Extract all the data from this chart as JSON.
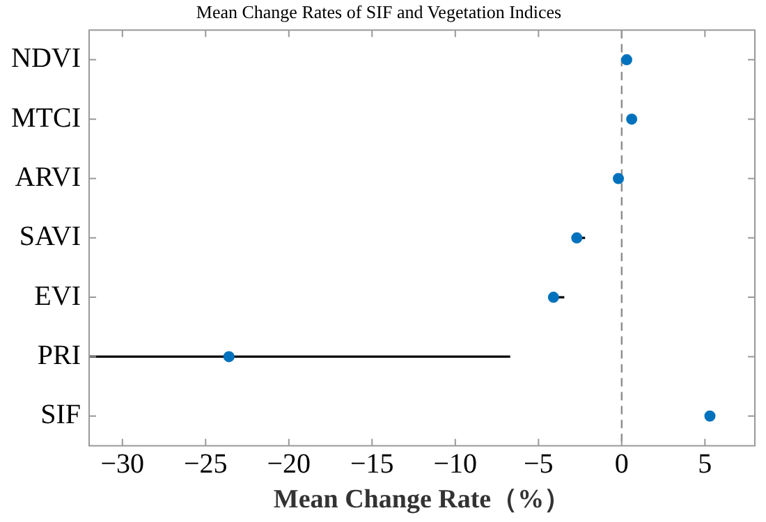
{
  "chart_data": {
    "type": "scatter",
    "title": "Mean Change Rates of SIF and Vegetation Indices",
    "xlabel": "Mean Change Rate（%）",
    "orientation": "horizontal",
    "categories": [
      "NDVI",
      "MTCI",
      "ARVI",
      "SAVI",
      "EVI",
      "PRI",
      "SIF"
    ],
    "values": [
      0.3,
      0.6,
      -0.2,
      -2.7,
      -4.1,
      -23.6,
      5.3
    ],
    "errors": [
      null,
      null,
      null,
      [
        -2.9,
        -2.2
      ],
      [
        -4.3,
        -3.45
      ],
      [
        -32,
        -6.7
      ],
      null
    ],
    "color": "#0072bd",
    "marker": "circle",
    "xlim": [
      -32,
      8
    ],
    "xticks": [
      -30,
      -25,
      -20,
      -15,
      -10,
      -5,
      0,
      5
    ],
    "grid": false,
    "legend": false,
    "ref_lines": [
      {
        "axis": "x",
        "value": 0,
        "color": "#8c8c8c",
        "line_style": "dashed"
      }
    ]
  }
}
